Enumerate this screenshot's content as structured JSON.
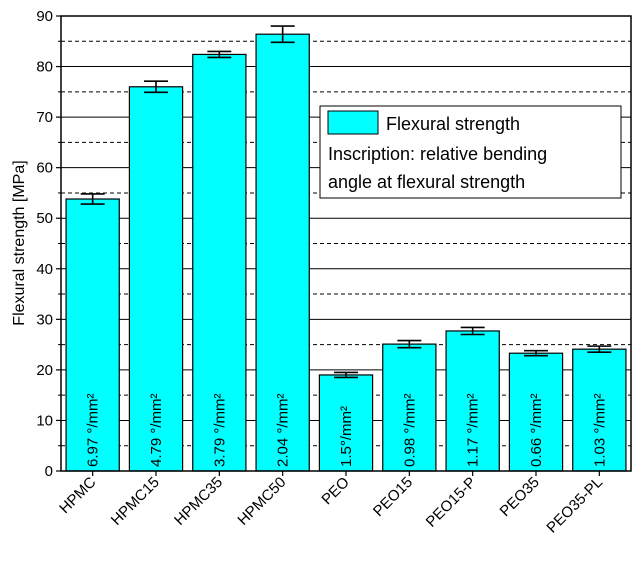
{
  "chart_data": {
    "type": "bar",
    "title": "",
    "xlabel": "",
    "ylabel": "Flexural strength [MPa]",
    "ylim": [
      0,
      90
    ],
    "yticks": [
      0,
      10,
      20,
      30,
      40,
      50,
      60,
      70,
      80,
      90
    ],
    "grid": "horizontal dashed lines at 5, 15, 25, ... 85; solid lines at major ticks",
    "categories": [
      "HPMC",
      "HPMC15",
      "HPMC35",
      "HPMC50",
      "PEO",
      "PEO15",
      "PEO15-P",
      "PEO35",
      "PEO35-PL"
    ],
    "series": [
      {
        "name": "Flexural strength",
        "color": "#00FFFF",
        "values": [
          53.8,
          76.0,
          82.4,
          86.4,
          19.0,
          25.1,
          27.7,
          23.3,
          24.1
        ],
        "errors": [
          1.0,
          1.1,
          0.6,
          1.6,
          0.5,
          0.7,
          0.7,
          0.5,
          0.6
        ],
        "bar_labels": [
          "6.97 °/mm²",
          "4.79 °/mm²",
          "3.79 °/mm²",
          "2.04 °/mm²",
          "1.5°/mm²",
          "0.98 °/mm²",
          "1.17 °/mm²",
          "0.66 °/mm²",
          "1.03 °/mm²"
        ]
      }
    ],
    "legend": {
      "position": "right-middle",
      "entry": "Flexural strength",
      "note_line1": "Inscription: relative bending",
      "note_line2": "angle at flexural strength"
    }
  }
}
